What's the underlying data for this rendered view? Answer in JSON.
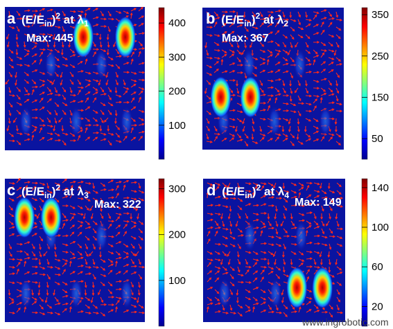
{
  "panels": [
    {
      "letter": "a",
      "pre": "(E/E",
      "sub": "in",
      "post": ")",
      "sup": "2",
      "at": " at λ",
      "lsub": "1",
      "max_text": "Max: 445",
      "ticks": [
        "400",
        "300",
        "200",
        "100"
      ],
      "tick_vals": [
        400,
        300,
        200,
        100
      ],
      "range": [
        0,
        445
      ],
      "spots": [
        [
          0.56,
          0.21
        ],
        [
          0.86,
          0.21
        ]
      ]
    },
    {
      "letter": "b",
      "pre": "(E/E",
      "sub": "in",
      "post": ")",
      "sup": "2",
      "at": " at λ",
      "lsub": "2",
      "max_text": "Max: 367",
      "ticks": [
        "350",
        "250",
        "150",
        "50"
      ],
      "tick_vals": [
        350,
        250,
        150,
        50
      ],
      "range": [
        0,
        367
      ],
      "spots": [
        [
          0.13,
          0.63
        ],
        [
          0.34,
          0.63
        ]
      ]
    },
    {
      "letter": "c",
      "pre": "(E/E",
      "sub": "in",
      "post": ")",
      "sup": "2",
      "at": " at λ",
      "lsub": "3",
      "max_text": "Max: 322",
      "ticks": [
        "300",
        "200",
        "100"
      ],
      "tick_vals": [
        300,
        200,
        100
      ],
      "range": [
        0,
        322
      ],
      "spots": [
        [
          0.14,
          0.27
        ],
        [
          0.33,
          0.27
        ]
      ]
    },
    {
      "letter": "d",
      "pre": "(E/E",
      "sub": "in",
      "post": ")",
      "sup": "2",
      "at": " at λ",
      "lsub": "4",
      "max_text": "Max: 149",
      "ticks": [
        "140",
        "100",
        "60",
        "20"
      ],
      "tick_vals": [
        140,
        100,
        60,
        20
      ],
      "range": [
        0,
        149
      ],
      "spots": [
        [
          0.66,
          0.76
        ],
        [
          0.84,
          0.76
        ]
      ]
    }
  ],
  "watermark": "www.ingrobotic.com",
  "colors": {
    "field_background": "#0a14a0",
    "arrow": "#ff2a1a",
    "label": "#ffffff"
  }
}
